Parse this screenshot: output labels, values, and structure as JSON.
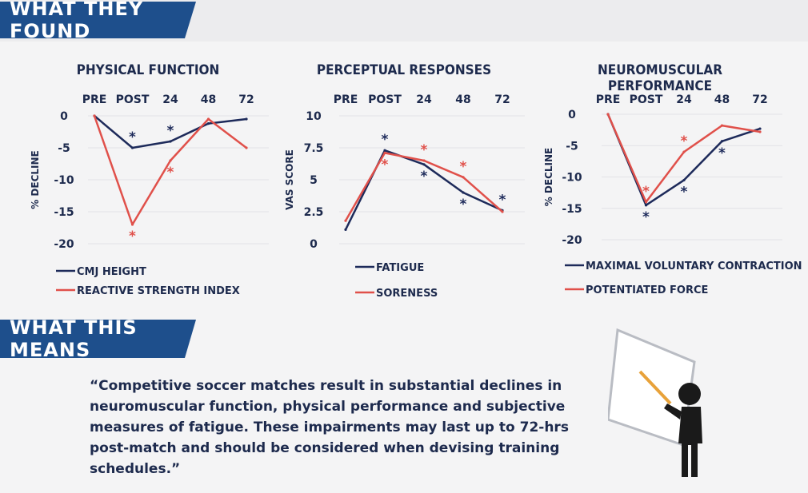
{
  "banners": {
    "found": "WHAT THEY FOUND",
    "means": "WHAT THIS MEANS"
  },
  "colors": {
    "navy": "#1d2a5a",
    "red": "#e0504a",
    "banner": "#1e4f8c"
  },
  "quote": {
    "lines": [
      "“Competitive soccer matches result in substantial declines in",
      "neuromuscular function, physical performance and subjective",
      "measures of fatigue. These impairments may last up to 72-hrs",
      "post-match and should be considered when devising training schedules.”"
    ]
  },
  "icons": {
    "presenter": "presenter-at-whiteboard-icon"
  },
  "chart_data": [
    {
      "type": "line",
      "title": "PHYSICAL FUNCTION",
      "categories": [
        "PRE",
        "POST",
        "24",
        "48",
        "72"
      ],
      "ylabel": "% DECLINE",
      "ylim": [
        -20,
        0
      ],
      "yticks": [
        0,
        -5,
        -10,
        -15,
        -20
      ],
      "grid": true,
      "legend_position": "bottom-left",
      "series": [
        {
          "name": "CMJ HEIGHT",
          "color": "#1d2a5a",
          "values": [
            0,
            -5,
            -4,
            -1.2,
            -0.5
          ],
          "significant": [
            false,
            true,
            true,
            false,
            false
          ]
        },
        {
          "name": "REACTIVE STRENGTH INDEX",
          "color": "#e0504a",
          "values": [
            0,
            -17,
            -7,
            -0.5,
            -5
          ],
          "significant": [
            false,
            true,
            true,
            false,
            false
          ]
        }
      ]
    },
    {
      "type": "line",
      "title": "PERCEPTUAL RESPONSES",
      "categories": [
        "PRE",
        "POST",
        "24",
        "48",
        "72"
      ],
      "ylabel": "VAS SCORE",
      "ylim": [
        0,
        10
      ],
      "yticks": [
        10,
        7.5,
        5,
        2.5,
        0
      ],
      "grid": true,
      "legend_position": "bottom-left",
      "series": [
        {
          "name": "FATIGUE",
          "color": "#1d2a5a",
          "values": [
            1.1,
            7.3,
            6.2,
            4.0,
            2.6
          ],
          "significant": [
            false,
            true,
            true,
            true,
            true
          ]
        },
        {
          "name": "SORENESS",
          "color": "#e0504a",
          "values": [
            1.8,
            7.1,
            6.5,
            5.2,
            2.5
          ],
          "significant": [
            false,
            true,
            true,
            true,
            false
          ]
        }
      ]
    },
    {
      "type": "line",
      "title": "NEUROMUSCULAR PERFORMANCE",
      "categories": [
        "PRE",
        "POST",
        "24",
        "48",
        "72"
      ],
      "ylabel": "% DECLINE",
      "ylim": [
        -20,
        0
      ],
      "yticks": [
        0,
        -5,
        -10,
        -15,
        -20
      ],
      "grid": true,
      "legend_position": "bottom-left",
      "series": [
        {
          "name": "MAXIMAL VOLUNTARY CONTRACTION",
          "color": "#1d2a5a",
          "values": [
            0,
            -14.5,
            -10.5,
            -4.3,
            -2.3
          ],
          "significant": [
            false,
            true,
            true,
            true,
            false
          ]
        },
        {
          "name": "POTENTIATED FORCE",
          "color": "#e0504a",
          "values": [
            0,
            -14,
            -6,
            -1.8,
            -2.8
          ],
          "significant": [
            false,
            true,
            true,
            false,
            false
          ]
        }
      ]
    }
  ]
}
